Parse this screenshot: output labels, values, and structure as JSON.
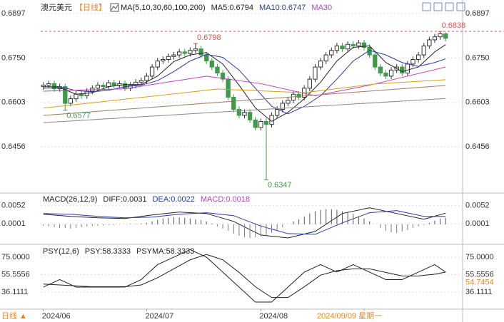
{
  "header": {
    "symbol": "澳元美元",
    "period": "【日线】"
  },
  "footer": {
    "corner": "日线 ▲",
    "cursor": "2024/09/09 星期一"
  },
  "chart_data": [
    {
      "type": "candlestick",
      "title": "MA(5,10,30,60,100,200)",
      "categories": [
        "2024/06",
        null,
        null,
        null,
        null,
        null,
        null,
        null,
        null,
        null,
        null,
        null,
        null,
        null,
        null,
        null,
        null,
        null,
        null,
        "2024/07",
        null,
        null,
        null,
        null,
        null,
        null,
        null,
        null,
        null,
        null,
        null,
        null,
        null,
        null,
        null,
        null,
        null,
        null,
        null,
        null,
        "2024/08",
        null,
        null,
        null,
        null,
        null,
        null,
        null,
        null,
        null,
        null,
        null,
        null,
        null,
        null,
        null,
        null,
        null,
        null,
        "2024/09",
        null,
        null,
        null,
        null,
        null,
        null,
        null,
        null,
        null,
        null,
        null,
        null,
        null,
        null,
        null
      ],
      "open": [
        0.6655,
        0.666,
        0.6665,
        0.6648,
        0.6655,
        0.66,
        0.6615,
        0.663,
        0.6625,
        0.664,
        0.665,
        0.666,
        0.6655,
        0.6668,
        0.666,
        0.6665,
        0.665,
        0.666,
        0.667,
        0.6675,
        0.669,
        0.672,
        0.674,
        0.6745,
        0.6755,
        0.676,
        0.677,
        0.6765,
        0.6775,
        0.678,
        0.676,
        0.674,
        0.672,
        0.67,
        0.668,
        0.662,
        0.658,
        0.656,
        0.657,
        0.6545,
        0.652,
        0.654,
        0.653,
        0.656,
        0.658,
        0.66,
        0.661,
        0.663,
        0.662,
        0.665,
        0.668,
        0.672,
        0.674,
        0.676,
        0.6775,
        0.679,
        0.678,
        0.6795,
        0.679,
        0.68,
        0.6785,
        0.676,
        0.672,
        0.67,
        0.669,
        0.671,
        0.672,
        0.67,
        0.673,
        0.6745,
        0.676,
        0.679,
        0.681,
        0.682,
        0.683
      ],
      "high": [
        0.667,
        0.6675,
        0.6675,
        0.6665,
        0.6665,
        0.6625,
        0.664,
        0.664,
        0.665,
        0.666,
        0.667,
        0.667,
        0.6678,
        0.6678,
        0.6675,
        0.6675,
        0.667,
        0.668,
        0.6685,
        0.67,
        0.673,
        0.675,
        0.6755,
        0.6765,
        0.677,
        0.678,
        0.678,
        0.6785,
        0.6798,
        0.679,
        0.677,
        0.675,
        0.673,
        0.671,
        0.669,
        0.663,
        0.659,
        0.658,
        0.658,
        0.6555,
        0.655,
        0.655,
        0.657,
        0.659,
        0.661,
        0.662,
        0.664,
        0.664,
        0.666,
        0.669,
        0.673,
        0.675,
        0.677,
        0.6785,
        0.68,
        0.68,
        0.6805,
        0.6805,
        0.681,
        0.681,
        0.6795,
        0.677,
        0.673,
        0.671,
        0.672,
        0.673,
        0.673,
        0.674,
        0.6755,
        0.677,
        0.68,
        0.682,
        0.683,
        0.6838,
        0.6835
      ],
      "low": [
        0.6645,
        0.665,
        0.6638,
        0.6638,
        0.6577,
        0.659,
        0.6605,
        0.6615,
        0.6615,
        0.663,
        0.664,
        0.6645,
        0.6645,
        0.665,
        0.665,
        0.664,
        0.664,
        0.665,
        0.666,
        0.6665,
        0.668,
        0.671,
        0.673,
        0.6735,
        0.6745,
        0.675,
        0.6755,
        0.6755,
        0.6765,
        0.675,
        0.673,
        0.671,
        0.669,
        0.667,
        0.661,
        0.657,
        0.655,
        0.655,
        0.6535,
        0.651,
        0.651,
        0.6347,
        0.652,
        0.655,
        0.657,
        0.659,
        0.66,
        0.661,
        0.661,
        0.664,
        0.667,
        0.671,
        0.673,
        0.675,
        0.6765,
        0.677,
        0.677,
        0.678,
        0.678,
        0.6775,
        0.675,
        0.671,
        0.669,
        0.668,
        0.668,
        0.67,
        0.669,
        0.669,
        0.672,
        0.6735,
        0.675,
        0.678,
        0.68,
        0.681,
        0.6805
      ],
      "close": [
        0.666,
        0.6665,
        0.6648,
        0.6655,
        0.66,
        0.6615,
        0.663,
        0.6625,
        0.664,
        0.665,
        0.666,
        0.6655,
        0.6668,
        0.666,
        0.6665,
        0.665,
        0.666,
        0.667,
        0.6675,
        0.669,
        0.672,
        0.674,
        0.6745,
        0.6755,
        0.676,
        0.677,
        0.6765,
        0.6775,
        0.678,
        0.676,
        0.674,
        0.672,
        0.67,
        0.668,
        0.662,
        0.658,
        0.656,
        0.657,
        0.6545,
        0.652,
        0.654,
        0.653,
        0.656,
        0.658,
        0.66,
        0.661,
        0.663,
        0.662,
        0.665,
        0.668,
        0.672,
        0.674,
        0.676,
        0.6775,
        0.679,
        0.678,
        0.6795,
        0.679,
        0.68,
        0.6785,
        0.676,
        0.672,
        0.67,
        0.669,
        0.671,
        0.672,
        0.67,
        0.673,
        0.6745,
        0.676,
        0.679,
        0.681,
        0.682,
        0.683,
        0.6815
      ],
      "up_color": "#ffffff",
      "up_stroke": "#333333",
      "down_color": "#3f9a4a",
      "ylim": [
        0.631,
        0.6923
      ],
      "yticks": [
        0.6897,
        {
          "value": 0.675,
          "label": "0.6750"
        },
        0.6603,
        0.6456
      ],
      "series": [
        {
          "name": "MA5:0.6794",
          "color": "#222222",
          "type": "line",
          "x": [
            0,
            3,
            6,
            9,
            12,
            15,
            18,
            21,
            24,
            27,
            30,
            33,
            36,
            39,
            42,
            45,
            48,
            51,
            54,
            57,
            60,
            63,
            66,
            69,
            72,
            74
          ],
          "values": [
            0.665,
            0.6652,
            0.663,
            0.6635,
            0.6655,
            0.6662,
            0.6662,
            0.669,
            0.6738,
            0.676,
            0.6768,
            0.673,
            0.666,
            0.6585,
            0.654,
            0.657,
            0.6615,
            0.667,
            0.674,
            0.6785,
            0.679,
            0.6735,
            0.6705,
            0.672,
            0.677,
            0.6794
          ]
        },
        {
          "name": "MA10:0.6747",
          "color": "#2a3aa0",
          "type": "line",
          "x": [
            0,
            3,
            6,
            9,
            12,
            15,
            18,
            21,
            24,
            27,
            30,
            33,
            36,
            39,
            42,
            45,
            48,
            51,
            54,
            57,
            60,
            63,
            66,
            69,
            72,
            74
          ],
          "values": [
            0.6655,
            0.6655,
            0.6642,
            0.6638,
            0.6643,
            0.6655,
            0.666,
            0.6675,
            0.6705,
            0.674,
            0.6762,
            0.6752,
            0.671,
            0.665,
            0.659,
            0.6565,
            0.659,
            0.6625,
            0.668,
            0.674,
            0.6775,
            0.676,
            0.6735,
            0.6722,
            0.6735,
            0.6747
          ]
        },
        {
          "name": "MA30",
          "color": "#c040c0",
          "type": "line",
          "x": [
            0,
            15,
            30,
            40,
            50,
            60,
            74
          ],
          "values": [
            0.664,
            0.6648,
            0.669,
            0.6665,
            0.6625,
            0.666,
            0.672
          ]
        },
        {
          "color": "#d4a017",
          "type": "line",
          "x": [
            0,
            32,
            48,
            61,
            74
          ],
          "values": [
            0.6584,
            0.6647,
            0.6635,
            0.6664,
            0.6678
          ]
        },
        {
          "color": "#a07a60",
          "type": "line",
          "x": [
            0,
            74
          ],
          "values": [
            0.656,
            0.6659
          ]
        },
        {
          "color": "#888888",
          "type": "line",
          "x": [
            0,
            74
          ],
          "values": [
            0.6536,
            0.6616
          ]
        }
      ],
      "annotations": [
        {
          "x": 28,
          "value": 0.6798,
          "color": "#d9534f"
        },
        {
          "x": 4,
          "value": 0.6577,
          "color": "#5a8a5a"
        },
        {
          "x": 41,
          "value": 0.6347,
          "color": "#3f9a4a"
        },
        {
          "x": 73,
          "value": 0.6838,
          "color": "#d9534f",
          "dashed": true
        }
      ]
    },
    {
      "type": "bar",
      "title": "MACD(26,12,9)",
      "ylim": [
        -0.0046,
        0.0077
      ],
      "yticks": [
        0.0052,
        0.0001
      ],
      "series": [
        {
          "name": "DIFF:0.0031",
          "color": "#222222",
          "type": "line",
          "x": [
            0,
            5,
            10,
            15,
            20,
            25,
            30,
            35,
            40,
            45,
            50,
            55,
            60,
            65,
            70,
            74
          ],
          "values": [
            0.0028,
            0.0022,
            0.0018,
            0.0016,
            0.0026,
            0.0034,
            0.003,
            0.0008,
            -0.003,
            -0.0038,
            -0.002,
            0.003,
            0.0046,
            0.003,
            0.0014,
            0.0031
          ]
        },
        {
          "name": "DEA:0.0022",
          "color": "#2a3aa0",
          "type": "line",
          "x": [
            0,
            5,
            10,
            15,
            20,
            25,
            30,
            35,
            40,
            45,
            50,
            55,
            60,
            65,
            70,
            74
          ],
          "values": [
            0.003,
            0.0028,
            0.0022,
            0.0018,
            0.002,
            0.0028,
            0.0032,
            0.0024,
            -0.0005,
            -0.0026,
            -0.0028,
            0.0004,
            0.0032,
            0.0038,
            0.0022,
            0.0022
          ]
        },
        {
          "name": "MACD:0.0018",
          "color": "#c040c0",
          "type": "bar",
          "values": [
            -0.0005,
            -0.0006,
            -0.0008,
            -0.001,
            -0.001,
            -0.0012,
            -0.001,
            -0.0008,
            -0.0006,
            -0.0005,
            -0.0004,
            -0.0003,
            -0.0002,
            -0.0002,
            -0.0001,
            0.0,
            0.0001,
            0.0001,
            0.0002,
            0.0004,
            0.0008,
            0.0012,
            0.0016,
            0.0018,
            0.002,
            0.0019,
            0.0018,
            0.0016,
            0.0014,
            0.0012,
            0.0008,
            0.0002,
            -0.0006,
            -0.0012,
            -0.0018,
            -0.0026,
            -0.0032,
            -0.0036,
            -0.0038,
            -0.0036,
            -0.0034,
            -0.003,
            -0.0024,
            -0.0016,
            -0.0008,
            0.0,
            0.0008,
            0.0014,
            0.0022,
            0.003,
            0.0036,
            0.004,
            0.0042,
            0.0042,
            0.004,
            0.0036,
            0.0032,
            0.0028,
            0.0022,
            0.0016,
            0.0008,
            0.0,
            -0.001,
            -0.0018,
            -0.0022,
            -0.0024,
            -0.002,
            -0.0016,
            -0.001,
            -0.0006,
            -0.0002,
            0.0004,
            0.001,
            0.0016,
            0.0018
          ]
        }
      ]
    },
    {
      "type": "line",
      "title": "PSY(12,6)",
      "ylim": [
        18.6,
        85.3
      ],
      "yticks": [
        {
          "value": 75,
          "label": "75.0000"
        },
        55.5556,
        36.1111
      ],
      "series": [
        {
          "name": "PSY:58.3333",
          "color": "#222222",
          "type": "line",
          "x": [
            0,
            3,
            6,
            9,
            12,
            15,
            18,
            21,
            24,
            27,
            30,
            33,
            36,
            39,
            42,
            45,
            48,
            51,
            54,
            57,
            60,
            63,
            66,
            69,
            72,
            74
          ],
          "values": [
            41.67,
            50,
            41.67,
            41.67,
            41.67,
            41.67,
            50,
            66.67,
            75,
            83.33,
            75,
            58.33,
            41.67,
            25,
            25,
            41.67,
            58.33,
            66.67,
            58.33,
            66.67,
            58.33,
            50,
            50,
            58.33,
            66.67,
            58.3333
          ]
        },
        {
          "name": "PSYMA:58.3333",
          "color": "#222222",
          "type": "line",
          "x": [
            0,
            3,
            6,
            9,
            12,
            15,
            18,
            21,
            24,
            27,
            30,
            33,
            36,
            39,
            42,
            45,
            48,
            51,
            54,
            57,
            60,
            63,
            66,
            69,
            72,
            74
          ],
          "values": [
            45,
            44,
            43,
            42,
            42,
            42,
            44,
            52,
            62,
            72,
            78,
            72,
            58,
            42,
            30,
            30,
            42,
            55,
            60,
            62,
            62,
            58,
            54,
            54,
            56,
            58.3333
          ]
        }
      ],
      "annotations": [
        {
          "value": 54.7454,
          "color": "#e8891c",
          "axis_tag": true
        }
      ]
    }
  ]
}
